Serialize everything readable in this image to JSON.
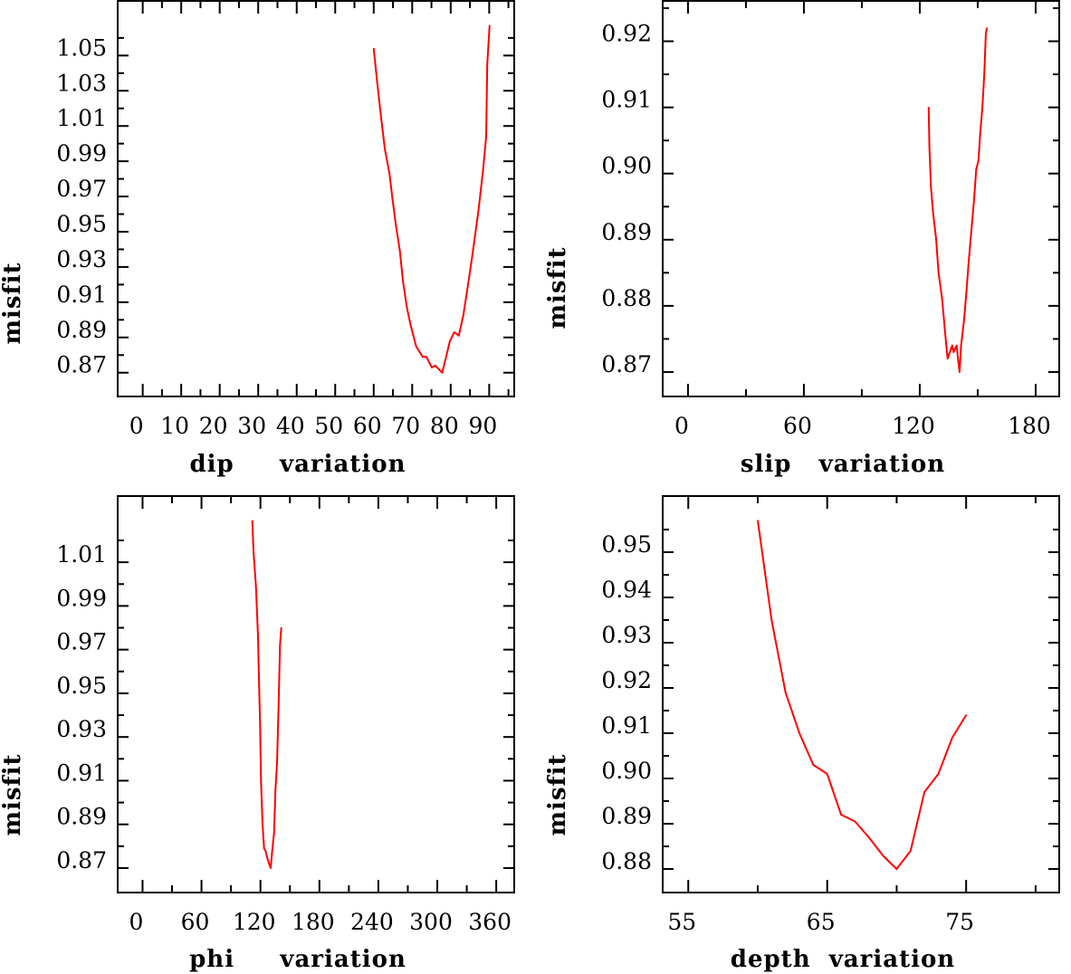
{
  "chart_data": [
    {
      "type": "line",
      "title": "",
      "xlabel": "dip     variation",
      "ylabel": "misfit",
      "xlim": [
        -6.5,
        96.5
      ],
      "ylim": [
        0.8565,
        1.081
      ],
      "xticks": [
        0,
        10,
        20,
        30,
        40,
        50,
        60,
        70,
        80,
        90
      ],
      "xminor": [
        5,
        15,
        25,
        35,
        45,
        55,
        65,
        75,
        85,
        95
      ],
      "yticks": [
        0.87,
        0.89,
        0.91,
        0.93,
        0.95,
        0.97,
        0.99,
        1.01,
        1.03,
        1.05
      ],
      "yminor": [
        0.88,
        0.9,
        0.92,
        0.94,
        0.96,
        0.98,
        1.0,
        1.02,
        1.04,
        1.06
      ],
      "color": "#ff0000",
      "x": [
        60.0,
        60.9,
        61.9,
        62.9,
        64.1,
        64.8,
        65.8,
        66.8,
        67.6,
        68.6,
        69.6,
        71.0,
        72.7,
        73.7,
        75.1,
        76.0,
        77.8,
        79.8,
        80.9,
        82.1,
        83.3,
        84.5,
        85.6,
        87.2,
        88.4,
        89.2,
        89.5,
        90.1
      ],
      "y": [
        1.054,
        1.035,
        1.015,
        0.997,
        0.983,
        0.97,
        0.953,
        0.939,
        0.922,
        0.907,
        0.897,
        0.885,
        0.879,
        0.879,
        0.873,
        0.874,
        0.87,
        0.888,
        0.893,
        0.891,
        0.903,
        0.92,
        0.936,
        0.962,
        0.985,
        1.004,
        1.045,
        1.067
      ]
    },
    {
      "type": "line",
      "title": "",
      "xlabel": "slip   variation",
      "ylabel": "misfit",
      "xlim": [
        -13.1,
        192.2
      ],
      "ylim": [
        0.8663,
        0.9261
      ],
      "xticks": [
        0,
        60,
        120,
        180
      ],
      "xminor": [
        30,
        90,
        150
      ],
      "yticks": [
        0.87,
        0.88,
        0.89,
        0.9,
        0.91,
        0.92
      ],
      "yminor": [
        0.875,
        0.885,
        0.895,
        0.905,
        0.915,
        0.925
      ],
      "color": "#ff0000",
      "x": [
        124.6,
        125.0,
        125.8,
        126.9,
        128.5,
        129.7,
        131.6,
        133.1,
        134.4,
        135.6,
        136.8,
        137.5,
        139.1,
        140.0,
        140.6,
        141.4,
        143.0,
        144.1,
        145.3,
        146.6,
        148.1,
        149.2,
        150.4,
        151.3,
        152.4,
        153.4,
        154.2,
        154.7
      ],
      "y": [
        0.91,
        0.904,
        0.898,
        0.894,
        0.89,
        0.885,
        0.881,
        0.876,
        0.872,
        0.873,
        0.874,
        0.873,
        0.874,
        0.8715,
        0.87,
        0.874,
        0.878,
        0.882,
        0.8865,
        0.891,
        0.896,
        0.9006,
        0.902,
        0.906,
        0.91,
        0.915,
        0.921,
        0.922
      ]
    },
    {
      "type": "line",
      "title": "",
      "xlabel": "phi     variation",
      "ylabel": "misfit",
      "xlim": [
        -25.3,
        378.3
      ],
      "ylim": [
        0.8588,
        1.0403
      ],
      "xticks": [
        0,
        60,
        120,
        180,
        240,
        300,
        360
      ],
      "xminor": [
        30,
        90,
        150,
        210,
        270,
        330
      ],
      "yticks": [
        0.87,
        0.89,
        0.91,
        0.93,
        0.95,
        0.97,
        0.99,
        1.01
      ],
      "yminor": [
        0.88,
        0.9,
        0.92,
        0.94,
        0.96,
        0.98,
        1.0,
        1.02
      ],
      "color": "#ff0000",
      "x": [
        111.7,
        112.9,
        115.4,
        117.5,
        118.4,
        119.6,
        120.6,
        122.1,
        123.7,
        125.2,
        126.7,
        128.8,
        130.4,
        132.0,
        133.8,
        135.3,
        136.9,
        138.4,
        139.9,
        141.2
      ],
      "y": [
        1.029,
        1.015,
        0.999,
        0.976,
        0.959,
        0.936,
        0.91,
        0.89,
        0.879,
        0.878,
        0.875,
        0.872,
        0.87,
        0.878,
        0.886,
        0.906,
        0.918,
        0.944,
        0.972,
        0.98
      ]
    },
    {
      "type": "line",
      "title": "",
      "xlabel": "depth  variation",
      "ylabel": "misfit",
      "xlim": [
        53.16,
        81.7
      ],
      "ylim": [
        0.8748,
        0.9624
      ],
      "xticks": [
        55,
        65,
        75
      ],
      "xminor": [
        60,
        70,
        80
      ],
      "yticks": [
        0.88,
        0.89,
        0.9,
        0.91,
        0.92,
        0.93,
        0.94,
        0.95
      ],
      "yminor": [
        0.885,
        0.895,
        0.905,
        0.915,
        0.925,
        0.935,
        0.945,
        0.955
      ],
      "color": "#ff0000",
      "x": [
        60,
        61,
        62,
        63,
        64,
        65,
        66,
        67,
        68,
        69,
        70,
        71,
        72,
        73,
        74,
        75
      ],
      "y": [
        0.957,
        0.935,
        0.919,
        0.91,
        0.903,
        0.901,
        0.892,
        0.8905,
        0.887,
        0.883,
        0.88,
        0.884,
        0.897,
        0.901,
        0.909,
        0.914
      ]
    }
  ]
}
